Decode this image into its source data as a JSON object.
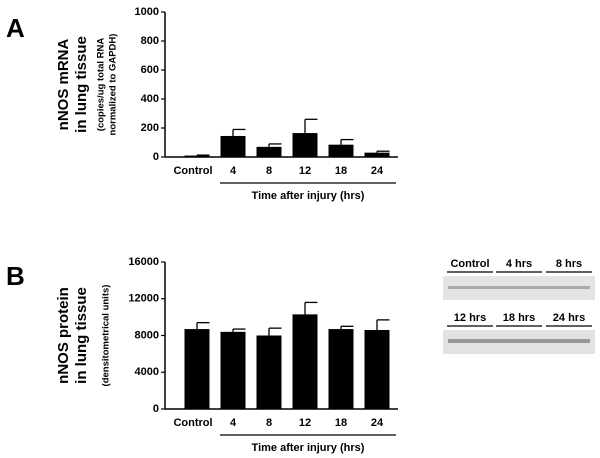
{
  "chart_data": [
    {
      "type": "bar",
      "panel_label": "A",
      "ylabel": [
        "nNOS mRNA",
        "in lung tissue"
      ],
      "ylabel_sub": [
        "(copies/ug total RNA",
        "normalized to GAPDH)"
      ],
      "categories": [
        "Control",
        "4",
        "8",
        "12",
        "18",
        "24"
      ],
      "values": [
        10,
        145,
        70,
        165,
        85,
        30
      ],
      "errors": [
        3,
        45,
        20,
        95,
        35,
        10
      ],
      "color": "#000000",
      "ylim": [
        0,
        1000
      ],
      "yticks": [
        0,
        200,
        400,
        600,
        800,
        1000
      ],
      "xlabel": "Time after injury (hrs)"
    },
    {
      "type": "bar",
      "panel_label": "B",
      "ylabel": [
        "nNOS protein",
        "in lung tissue"
      ],
      "ylabel_sub": [
        "(densitometrical units)"
      ],
      "categories": [
        "Control",
        "4",
        "8",
        "12",
        "18",
        "24"
      ],
      "values": [
        8700,
        8400,
        8000,
        10300,
        8700,
        8600
      ],
      "errors": [
        700,
        300,
        800,
        1300,
        300,
        1100
      ],
      "color": "#000000",
      "ylim": [
        0,
        16000
      ],
      "yticks": [
        0,
        4000,
        8000,
        12000,
        16000
      ],
      "xlabel": "Time after injury (hrs)"
    }
  ],
  "blot": {
    "labels": [
      "Control",
      "4 hrs",
      "8 hrs",
      "12 hrs",
      "18 hrs",
      "24 hrs"
    ]
  }
}
